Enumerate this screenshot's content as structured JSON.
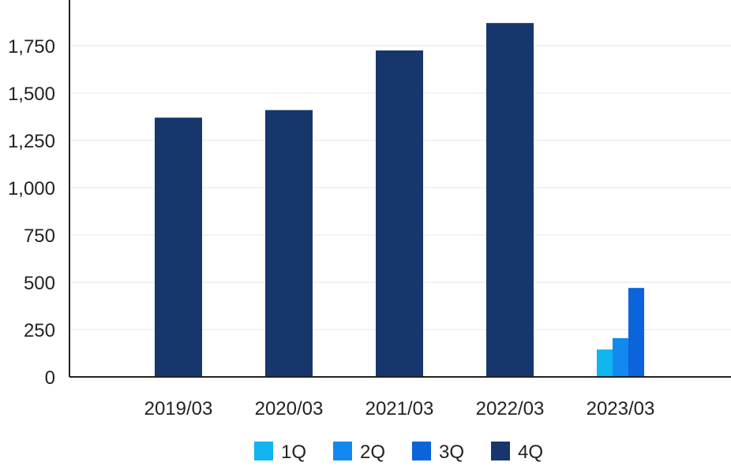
{
  "chart_data": {
    "type": "bar",
    "title": "",
    "xlabel": "",
    "ylabel": "",
    "categories": [
      "2019/03",
      "2020/03",
      "2021/03",
      "2022/03",
      "2023/03"
    ],
    "ylim": [
      0,
      1875
    ],
    "yticks": [
      0,
      250,
      500,
      750,
      1000,
      1250,
      1500,
      1750
    ],
    "ytick_labels": [
      "0",
      "250",
      "500",
      "750",
      "1,000",
      "1,250",
      "1,500",
      "1,750"
    ],
    "grid": true,
    "legend_position": "bottom",
    "series": [
      {
        "name": "1Q",
        "color": "#11b5f0",
        "values": [
          null,
          null,
          null,
          null,
          145
        ]
      },
      {
        "name": "2Q",
        "color": "#1289ee",
        "values": [
          null,
          null,
          null,
          null,
          205
        ]
      },
      {
        "name": "3Q",
        "color": "#0b64dc",
        "values": [
          null,
          null,
          null,
          null,
          470
        ]
      },
      {
        "name": "4Q",
        "color": "#16366c",
        "values": [
          1370,
          1410,
          1725,
          1870,
          null
        ]
      }
    ]
  }
}
